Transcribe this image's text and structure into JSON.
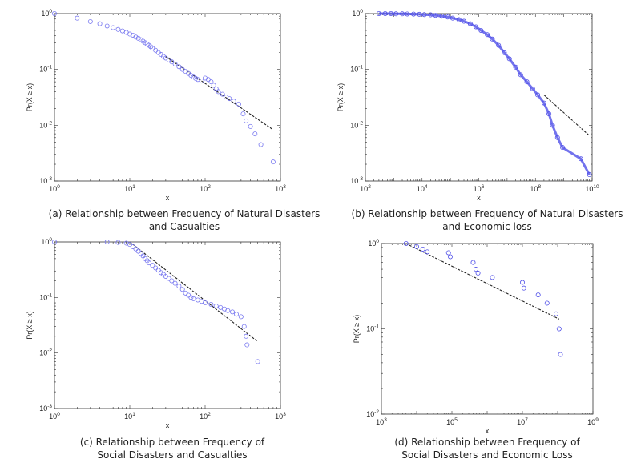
{
  "chart_data": [
    {
      "type": "scatter",
      "panel": "a",
      "caption_line1": "(a) Relationship between Frequency of Natural Disasters",
      "caption_line2": "and Casualties",
      "xlabel": "x",
      "ylabel": "Pr(X ≥ x)",
      "xscale": "log",
      "yscale": "log",
      "xlim": [
        1,
        1000
      ],
      "ylim": [
        0.001,
        1
      ],
      "x_tick_labels": [
        "10^0",
        "10^1",
        "10^2",
        "10^3"
      ],
      "y_tick_labels": [
        "10^-3",
        "10^-2",
        "10^-1",
        "10^0"
      ],
      "marker_color": "#7b7bf0",
      "fit_line_color": "#222222",
      "points": [
        [
          1,
          1.0
        ],
        [
          2,
          0.83
        ],
        [
          3,
          0.72
        ],
        [
          4,
          0.66
        ],
        [
          5,
          0.6
        ],
        [
          6,
          0.56
        ],
        [
          7,
          0.52
        ],
        [
          8,
          0.49
        ],
        [
          9,
          0.46
        ],
        [
          10,
          0.43
        ],
        [
          11,
          0.41
        ],
        [
          12,
          0.38
        ],
        [
          13,
          0.36
        ],
        [
          14,
          0.34
        ],
        [
          15,
          0.32
        ],
        [
          16,
          0.3
        ],
        [
          17,
          0.285
        ],
        [
          18,
          0.27
        ],
        [
          19,
          0.255
        ],
        [
          20,
          0.24
        ],
        [
          22,
          0.22
        ],
        [
          24,
          0.2
        ],
        [
          26,
          0.185
        ],
        [
          28,
          0.17
        ],
        [
          30,
          0.16
        ],
        [
          33,
          0.148
        ],
        [
          36,
          0.137
        ],
        [
          40,
          0.125
        ],
        [
          45,
          0.112
        ],
        [
          50,
          0.1
        ],
        [
          55,
          0.092
        ],
        [
          60,
          0.085
        ],
        [
          65,
          0.078
        ],
        [
          70,
          0.073
        ],
        [
          75,
          0.069
        ],
        [
          80,
          0.066
        ],
        [
          90,
          0.062
        ],
        [
          100,
          0.07
        ],
        [
          110,
          0.066
        ],
        [
          120,
          0.06
        ],
        [
          130,
          0.052
        ],
        [
          140,
          0.045
        ],
        [
          150,
          0.04
        ],
        [
          170,
          0.036
        ],
        [
          190,
          0.032
        ],
        [
          210,
          0.03
        ],
        [
          240,
          0.027
        ],
        [
          280,
          0.024
        ],
        [
          320,
          0.016
        ],
        [
          350,
          0.012
        ],
        [
          400,
          0.0095
        ],
        [
          460,
          0.007
        ],
        [
          550,
          0.0045
        ],
        [
          800,
          0.0022
        ]
      ],
      "fit_line": [
        [
          30,
          0.17
        ],
        [
          780,
          0.0085
        ]
      ]
    },
    {
      "type": "scatter",
      "panel": "b",
      "caption_line1": "(b) Relationship between Frequency of Natural Disasters",
      "caption_line2": "and Economic loss",
      "xlabel": "x",
      "ylabel": "Pr(X ≥ x)",
      "xscale": "log",
      "yscale": "log",
      "xlim": [
        100,
        10000000000
      ],
      "ylim": [
        0.001,
        1
      ],
      "x_tick_labels": [
        "10^2",
        "10^4",
        "10^6",
        "10^8",
        "10^10"
      ],
      "y_tick_labels": [
        "10^-3",
        "10^-2",
        "10^-1",
        "10^0"
      ],
      "marker_color": "#5050e8",
      "fit_line_color": "#222222",
      "points": [
        [
          300,
          1.0
        ],
        [
          500,
          1.0
        ],
        [
          800,
          1.0
        ],
        [
          1200,
          0.99
        ],
        [
          2000,
          0.99
        ],
        [
          3000,
          0.985
        ],
        [
          5000,
          0.98
        ],
        [
          8000,
          0.97
        ],
        [
          12000,
          0.96
        ],
        [
          20000,
          0.95
        ],
        [
          30000,
          0.93
        ],
        [
          50000,
          0.9
        ],
        [
          80000,
          0.87
        ],
        [
          120000,
          0.83
        ],
        [
          200000,
          0.78
        ],
        [
          300000,
          0.73
        ],
        [
          500000,
          0.66
        ],
        [
          800000,
          0.58
        ],
        [
          1200000,
          0.5
        ],
        [
          2000000,
          0.42
        ],
        [
          3000000,
          0.35
        ],
        [
          5000000,
          0.27
        ],
        [
          8000000,
          0.2
        ],
        [
          12000000,
          0.155
        ],
        [
          20000000,
          0.11
        ],
        [
          30000000,
          0.08
        ],
        [
          50000000,
          0.06
        ],
        [
          80000000,
          0.045
        ],
        [
          120000000,
          0.035
        ],
        [
          200000000,
          0.025
        ],
        [
          300000000,
          0.016
        ],
        [
          400000000,
          0.01
        ],
        [
          600000000,
          0.006
        ],
        [
          900000000,
          0.004
        ],
        [
          4000000000,
          0.0025
        ],
        [
          8000000000,
          0.0013
        ]
      ],
      "fit_line": [
        [
          200000000,
          0.035
        ],
        [
          8000000000,
          0.0065
        ]
      ]
    },
    {
      "type": "scatter",
      "panel": "c",
      "caption_line1": "(c) Relationship between Frequency of",
      "caption_line2": "Social Disasters and Casualties",
      "xlabel": "x",
      "ylabel": "Pr(X ≥ x)",
      "xscale": "log",
      "yscale": "log",
      "xlim": [
        1,
        1000
      ],
      "ylim": [
        0.001,
        1
      ],
      "x_tick_labels": [
        "10^0",
        "10^1",
        "10^2",
        "10^3"
      ],
      "y_tick_labels": [
        "10^-3",
        "10^-2",
        "10^-1",
        "10^0"
      ],
      "marker_color": "#7b7bf0",
      "fit_line_color": "#222222",
      "points": [
        [
          1,
          1.0
        ],
        [
          5,
          1.0
        ],
        [
          7,
          0.98
        ],
        [
          9,
          0.95
        ],
        [
          10,
          0.9
        ],
        [
          11,
          0.82
        ],
        [
          12,
          0.75
        ],
        [
          13,
          0.68
        ],
        [
          14,
          0.62
        ],
        [
          15,
          0.56
        ],
        [
          16,
          0.5
        ],
        [
          17,
          0.46
        ],
        [
          18,
          0.42
        ],
        [
          20,
          0.38
        ],
        [
          22,
          0.34
        ],
        [
          24,
          0.31
        ],
        [
          26,
          0.28
        ],
        [
          28,
          0.26
        ],
        [
          30,
          0.24
        ],
        [
          33,
          0.22
        ],
        [
          36,
          0.2
        ],
        [
          40,
          0.18
        ],
        [
          45,
          0.16
        ],
        [
          50,
          0.14
        ],
        [
          55,
          0.12
        ],
        [
          60,
          0.11
        ],
        [
          65,
          0.1
        ],
        [
          70,
          0.095
        ],
        [
          80,
          0.09
        ],
        [
          90,
          0.085
        ],
        [
          100,
          0.08
        ],
        [
          120,
          0.075
        ],
        [
          140,
          0.07
        ],
        [
          160,
          0.066
        ],
        [
          180,
          0.062
        ],
        [
          200,
          0.058
        ],
        [
          230,
          0.055
        ],
        [
          260,
          0.05
        ],
        [
          300,
          0.045
        ],
        [
          330,
          0.03
        ],
        [
          350,
          0.02
        ],
        [
          360,
          0.014
        ],
        [
          500,
          0.007
        ]
      ],
      "fit_line": [
        [
          10,
          1.0
        ],
        [
          500,
          0.016
        ]
      ]
    },
    {
      "type": "scatter",
      "panel": "d",
      "caption_line1": "(d) Relationship between Frequency of",
      "caption_line2": "Social Disasters and Economic Loss",
      "xlabel": "x",
      "ylabel": "Pr(X ≥ x)",
      "xscale": "log",
      "yscale": "log",
      "xlim": [
        1000,
        1000000000
      ],
      "ylim": [
        0.01,
        1
      ],
      "x_tick_labels": [
        "10^3",
        "10^5",
        "10^7",
        "10^9"
      ],
      "y_tick_labels": [
        "10^-2",
        "10^-1",
        "10^0"
      ],
      "marker_color": "#5050e8",
      "fit_line_color": "#222222",
      "points": [
        [
          5000,
          1.0
        ],
        [
          10000,
          0.92
        ],
        [
          15000,
          0.86
        ],
        [
          20000,
          0.8
        ],
        [
          80000,
          0.78
        ],
        [
          90000,
          0.7
        ],
        [
          400000,
          0.6
        ],
        [
          480000,
          0.5
        ],
        [
          550000,
          0.45
        ],
        [
          1400000,
          0.4
        ],
        [
          10000000,
          0.35
        ],
        [
          11000000,
          0.3
        ],
        [
          28000000,
          0.25
        ],
        [
          50000000,
          0.2
        ],
        [
          90000000,
          0.15
        ],
        [
          110000000,
          0.1
        ],
        [
          120000000,
          0.05
        ]
      ],
      "fit_line": [
        [
          5000,
          1.0
        ],
        [
          110000000,
          0.13
        ]
      ]
    }
  ]
}
